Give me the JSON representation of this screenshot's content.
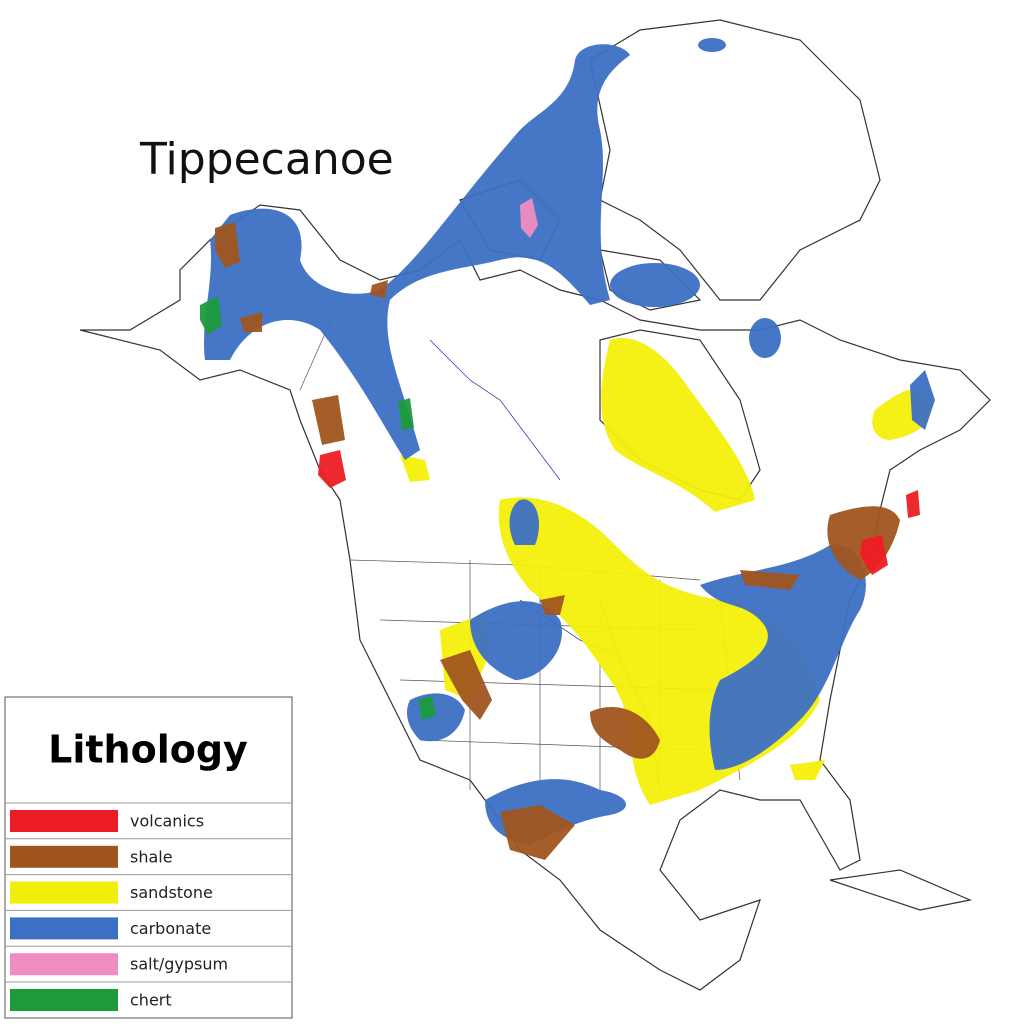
{
  "map": {
    "title": "Tippecanoe",
    "legend": {
      "title": "Lithology",
      "items": [
        {
          "label": "volcanics",
          "color": "#ed1c24"
        },
        {
          "label": "shale",
          "color": "#a0551f"
        },
        {
          "label": "sandstone",
          "color": "#f4ef0a"
        },
        {
          "label": "carbonate",
          "color": "#3c70c4"
        },
        {
          "label": "salt/gypsum",
          "color": "#f08dc0"
        },
        {
          "label": "chert",
          "color": "#1e9a3c"
        }
      ]
    }
  }
}
